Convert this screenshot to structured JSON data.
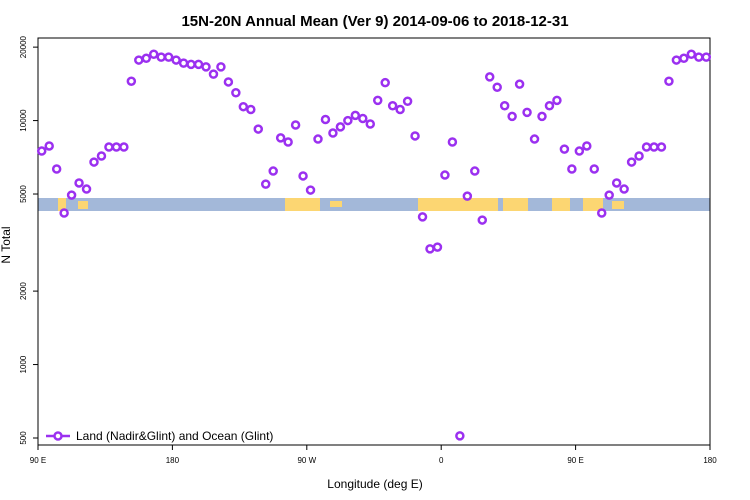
{
  "chart_data": {
    "type": "scatter",
    "title": "15N-20N Annual Mean (Ver 9)   2014-09-06 to 2018-12-31",
    "x_label": "Longitude (deg E)",
    "y_label": "N Total",
    "log_y": true,
    "legend_position": "bottom-left",
    "xlim": [
      90,
      540
    ],
    "xticks": [
      {
        "value": 90,
        "label": "90 E"
      },
      {
        "value": 180,
        "label": "180"
      },
      {
        "value": 270,
        "label": "90 W"
      },
      {
        "value": 360,
        "label": "0"
      },
      {
        "value": 450,
        "label": "90 E"
      },
      {
        "value": 540,
        "label": "180"
      }
    ],
    "ylim": [
      468,
      21800
    ],
    "yticks": [
      500,
      1000,
      2000,
      5000,
      10000,
      20000
    ],
    "series": [
      {
        "name": "Land (Nadir&Glint) and Ocean (Glint)",
        "color": "#9b30f0",
        "x": [
          92.5,
          97.5,
          102.5,
          107.5,
          112.5,
          117.5,
          122.5,
          127.5,
          132.5,
          137.5,
          142.5,
          147.5,
          152.5,
          157.5,
          162.5,
          167.5,
          172.5,
          177.5,
          182.5,
          187.5,
          192.5,
          197.5,
          202.5,
          207.5,
          212.5,
          217.5,
          222.5,
          227.5,
          232.5,
          237.5,
          242.5,
          247.5,
          252.5,
          257.5,
          262.5,
          267.5,
          272.5,
          277.5,
          282.5,
          287.5,
          292.5,
          297.5,
          302.5,
          307.5,
          312.5,
          317.5,
          322.5,
          327.5,
          332.5,
          337.5,
          342.5,
          347.5,
          352.5,
          357.5,
          362.5,
          367.5,
          372.5,
          377.5,
          382.5,
          387.5,
          392.5,
          397.5,
          402.5,
          407.5,
          412.5,
          417.5,
          422.5,
          427.5,
          432.5,
          437.5,
          442.5,
          447.5,
          452.5,
          457.5,
          462.5,
          467.5,
          472.5,
          477.5,
          482.5,
          487.5,
          492.5,
          497.5,
          502.5,
          507.5,
          512.5,
          517.5,
          522.5,
          527.5,
          532.5,
          537.5
        ],
        "values": [
          7500,
          7870,
          6330,
          4180,
          4950,
          5550,
          5240,
          6760,
          7160,
          7790,
          7790,
          7790,
          14500,
          17700,
          18000,
          18700,
          18200,
          18200,
          17700,
          17200,
          17000,
          17000,
          16600,
          15500,
          16600,
          14400,
          13000,
          11400,
          11100,
          9230,
          5490,
          6210,
          8490,
          8170,
          9590,
          5930,
          5190,
          8400,
          10100,
          8890,
          9420,
          10000,
          10500,
          10200,
          9680,
          12100,
          14300,
          11500,
          11100,
          12000,
          8650,
          4030,
          2980,
          3030,
          5980,
          8170,
          510,
          4900,
          6210,
          3910,
          15100,
          13700,
          11500,
          10400,
          14100,
          10800,
          8400,
          10400,
          11500,
          12100,
          7640,
          6330,
          7500,
          7870,
          6330,
          4180,
          4950,
          5550,
          5240,
          6760,
          7160,
          7790,
          7790,
          7790,
          14500,
          17700,
          18000,
          18700,
          18200,
          18200
        ]
      }
    ]
  }
}
